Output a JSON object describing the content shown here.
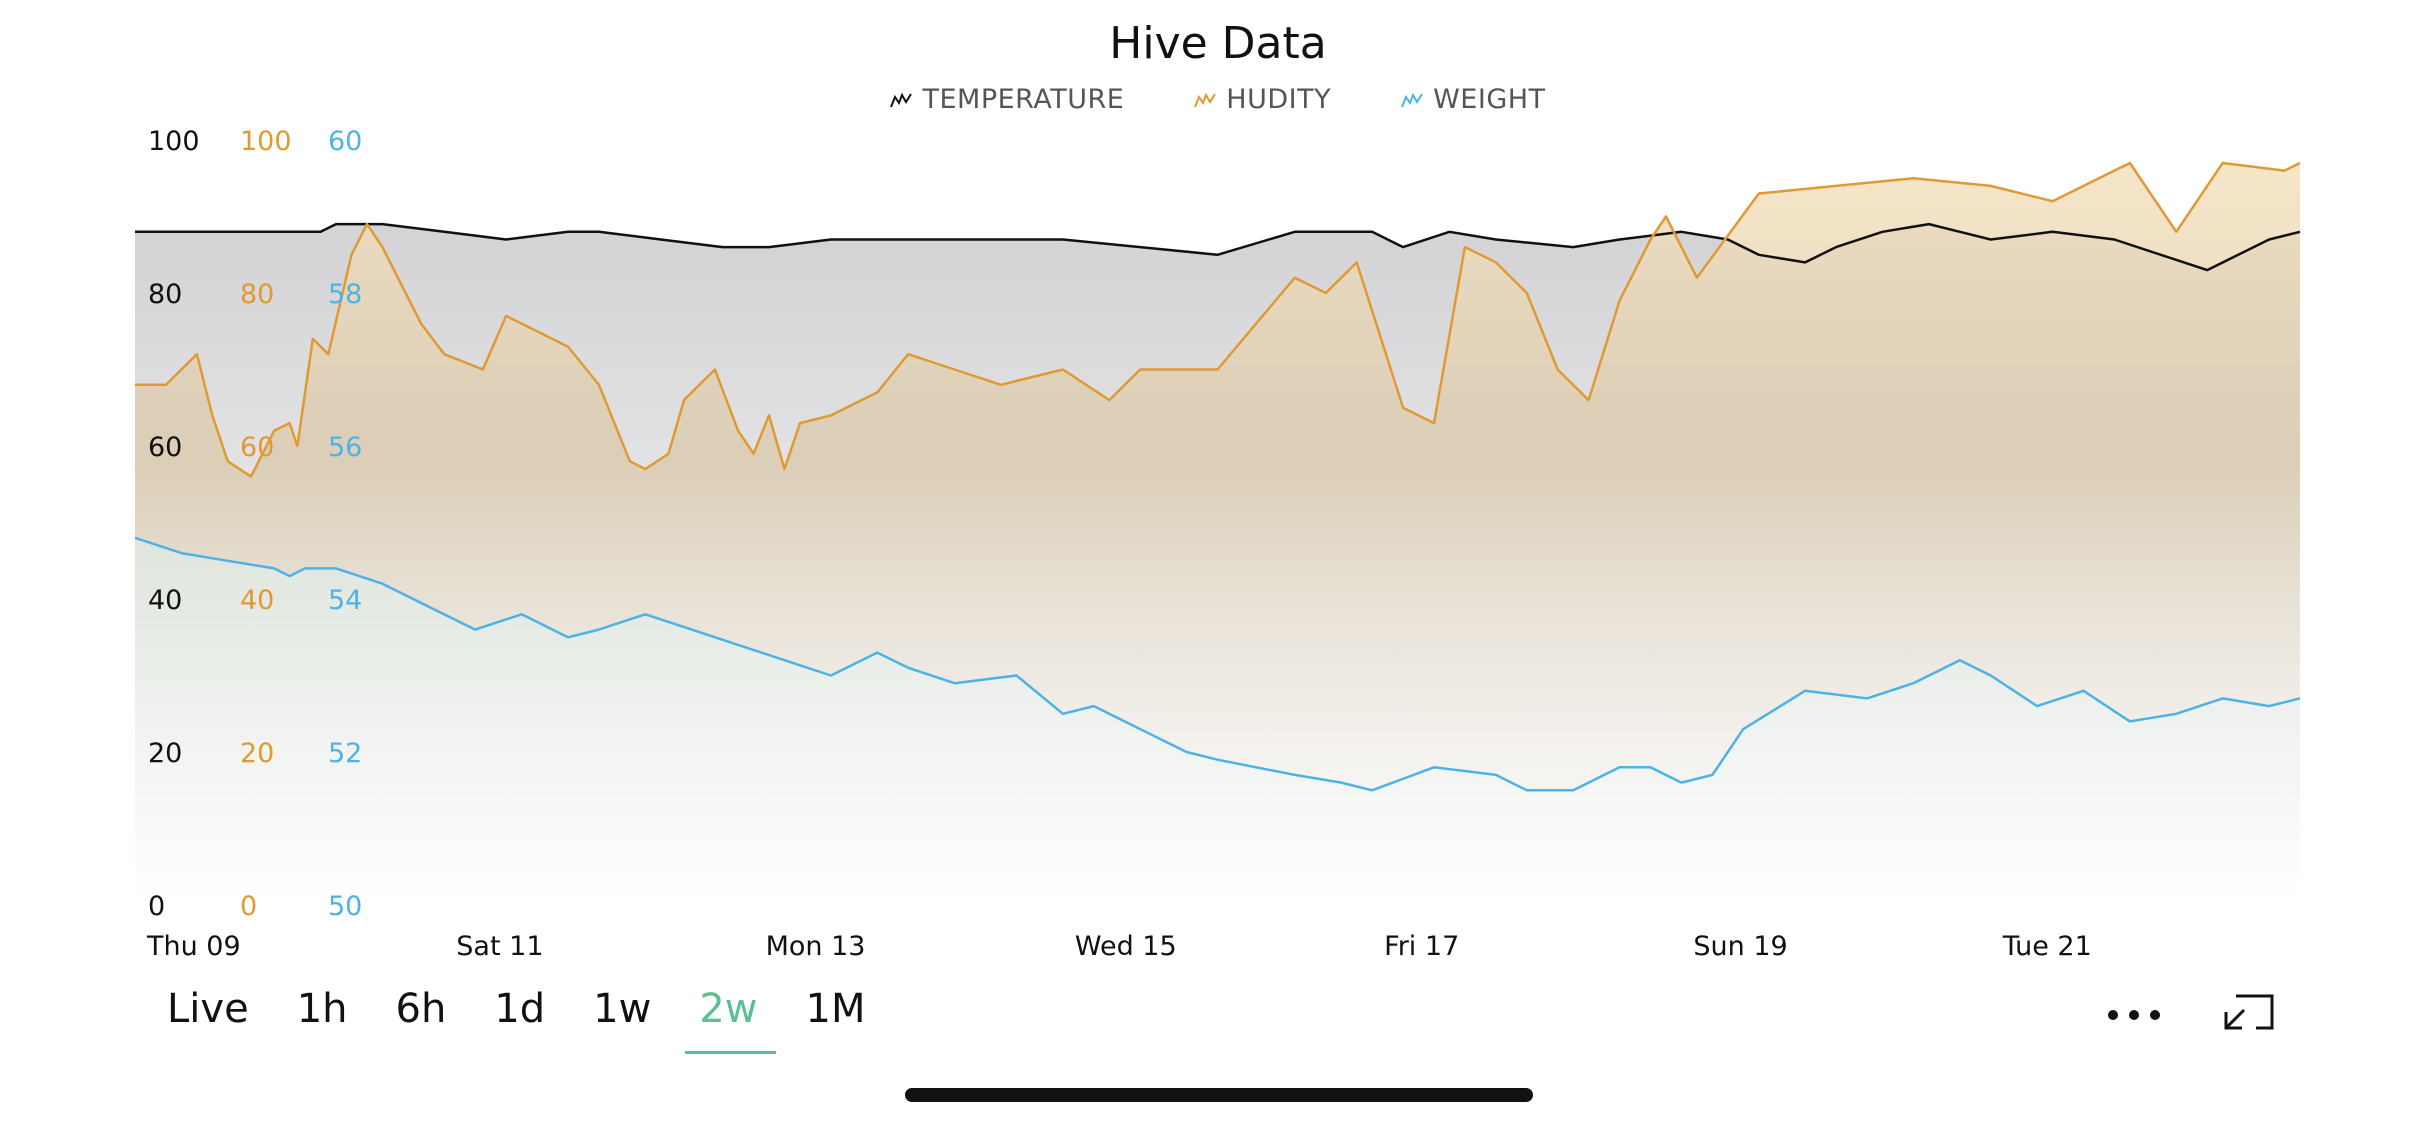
{
  "chart_data": {
    "type": "area",
    "title": "Hive Data",
    "legend_position": "top-center",
    "grid": false,
    "x_labels": [
      "Thu 09",
      "Sat 11",
      "Mon 13",
      "Wed 15",
      "Fri 17",
      "Sun 19",
      "Tue 21"
    ],
    "xlim": [
      0,
      14
    ],
    "axes": [
      {
        "series": "TEMPERATURE",
        "color": "#111111",
        "ticks": [
          "100",
          "80",
          "60",
          "40",
          "20",
          "0"
        ],
        "ylim": [
          0,
          100
        ]
      },
      {
        "series": "HUDITY",
        "color": "#e09a33",
        "ticks": [
          "100",
          "80",
          "60",
          "40",
          "20",
          "0"
        ],
        "ylim": [
          0,
          100
        ]
      },
      {
        "series": "WEIGHT",
        "color": "#4db3e6",
        "ticks": [
          "60",
          "58",
          "56",
          "54",
          "52",
          "50"
        ],
        "ylim": [
          50,
          60
        ]
      }
    ],
    "series": [
      {
        "name": "TEMPERATURE",
        "color": "#111111",
        "x": [
          0,
          0.3,
          0.6,
          0.9,
          1.2,
          1.3,
          1.6,
          2.0,
          2.4,
          2.8,
          3.0,
          3.4,
          3.8,
          4.1,
          4.5,
          5.0,
          6.0,
          7.0,
          7.5,
          8.0,
          8.2,
          8.5,
          8.8,
          9.3,
          9.6,
          10.0,
          10.3,
          10.5,
          10.8,
          11.0,
          11.3,
          11.6,
          11.8,
          12.0,
          12.4,
          12.8,
          13.1,
          13.4,
          13.8,
          14.0
        ],
        "y": [
          88,
          88,
          88,
          88,
          88,
          89,
          89,
          88,
          87,
          88,
          88,
          87,
          86,
          86,
          87,
          87,
          87,
          85,
          88,
          88,
          86,
          88,
          87,
          86,
          87,
          88,
          87,
          85,
          84,
          86,
          88,
          89,
          88,
          87,
          88,
          87,
          85,
          83,
          87,
          88
        ]
      },
      {
        "name": "HUDITY",
        "color": "#e09a33",
        "x": [
          0,
          0.2,
          0.4,
          0.5,
          0.6,
          0.75,
          0.9,
          1.0,
          1.05,
          1.15,
          1.25,
          1.4,
          1.5,
          1.6,
          1.75,
          1.85,
          2.0,
          2.25,
          2.4,
          2.6,
          2.8,
          3.0,
          3.2,
          3.3,
          3.45,
          3.55,
          3.75,
          3.9,
          4.0,
          4.1,
          4.2,
          4.3,
          4.5,
          4.8,
          5.0,
          5.3,
          5.6,
          6.0,
          6.3,
          6.5,
          6.8,
          7.0,
          7.5,
          7.7,
          7.9,
          8.2,
          8.4,
          8.6,
          8.8,
          9.0,
          9.2,
          9.4,
          9.6,
          9.8,
          9.9,
          10.1,
          10.5,
          11.0,
          11.5,
          12.0,
          12.4,
          12.7,
          12.9,
          13.2,
          13.5,
          13.9,
          14.0
        ],
        "y": [
          68,
          68,
          72,
          64,
          58,
          56,
          62,
          63,
          60,
          74,
          72,
          85,
          89,
          86,
          80,
          76,
          72,
          70,
          77,
          75,
          73,
          68,
          58,
          57,
          59,
          66,
          70,
          62,
          59,
          64,
          57,
          63,
          64,
          67,
          72,
          70,
          68,
          70,
          66,
          70,
          70,
          70,
          82,
          80,
          84,
          65,
          63,
          86,
          84,
          80,
          70,
          66,
          79,
          87,
          90,
          82,
          93,
          94,
          95,
          94,
          92,
          95,
          97,
          88,
          97,
          96,
          97
        ]
      },
      {
        "name": "WEIGHT",
        "color": "#4db3e6",
        "x": [
          0,
          0.3,
          0.6,
          0.9,
          1.0,
          1.1,
          1.3,
          1.6,
          1.9,
          2.2,
          2.5,
          2.8,
          3.0,
          3.3,
          3.6,
          3.9,
          4.2,
          4.5,
          4.8,
          5.0,
          5.3,
          5.7,
          6.0,
          6.2,
          6.5,
          6.8,
          7.0,
          7.5,
          7.8,
          8.0,
          8.4,
          8.8,
          9.0,
          9.3,
          9.6,
          9.8,
          10.0,
          10.2,
          10.4,
          10.8,
          11.2,
          11.5,
          11.8,
          12.0,
          12.3,
          12.6,
          12.9,
          13.2,
          13.5,
          13.8,
          14.0
        ],
        "y": [
          54.8,
          54.6,
          54.5,
          54.4,
          54.3,
          54.4,
          54.4,
          54.2,
          53.9,
          53.6,
          53.8,
          53.5,
          53.6,
          53.8,
          53.6,
          53.4,
          53.2,
          53.0,
          53.3,
          53.1,
          52.9,
          53.0,
          52.5,
          52.6,
          52.3,
          52.0,
          51.9,
          51.7,
          51.6,
          51.5,
          51.8,
          51.7,
          51.5,
          51.5,
          51.8,
          51.8,
          51.6,
          51.7,
          52.3,
          52.8,
          52.7,
          52.9,
          53.2,
          53.0,
          52.6,
          52.8,
          52.4,
          52.5,
          52.7,
          52.6,
          52.7
        ]
      }
    ]
  },
  "legend": [
    {
      "label": "TEMPERATURE",
      "color": "#111111",
      "icon": "temperature-sparkline-icon"
    },
    {
      "label": "HUDITY",
      "color": "#e09a33",
      "icon": "humidity-sparkline-icon"
    },
    {
      "label": "WEIGHT",
      "color": "#4db3e6",
      "icon": "weight-sparkline-icon"
    }
  ],
  "range_tabs": [
    "Live",
    "1h",
    "6h",
    "1d",
    "1w",
    "2w",
    "1M"
  ],
  "active_range": "2w",
  "toolbar": {
    "more_icon": "ellipsis-icon",
    "expand_icon": "expand-icon"
  }
}
